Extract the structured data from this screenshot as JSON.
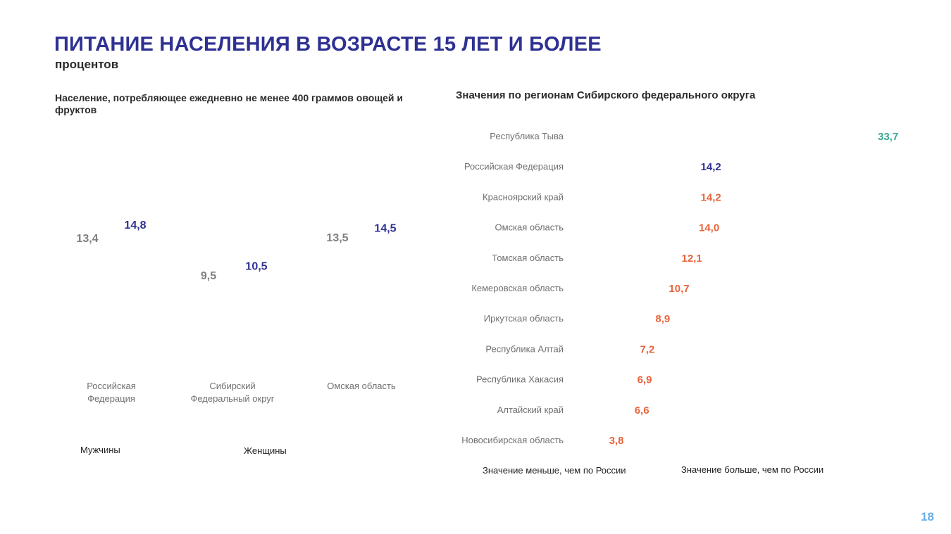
{
  "page": {
    "title": "ПИТАНИЕ НАСЕЛЕНИЯ В ВОЗРАСТЕ 15 ЛЕТ И БОЛЕЕ",
    "subtitle": "процентов",
    "page_number": "18"
  },
  "colors": {
    "men": "#808080",
    "women": "#2e3192",
    "below_russia": "#e8643c",
    "above_russia": "#3aa896",
    "russia": "#2e3192"
  },
  "chart_data": [
    {
      "type": "bar",
      "title": "Население, потребляющее ежедневно не менее 400 граммов овощей и фруктов",
      "categories": [
        [
          "Российская",
          "Федерация"
        ],
        [
          "Сибирский",
          "Федеральный округ"
        ],
        [
          "Омская область"
        ]
      ],
      "series": [
        {
          "name": "Мужчины",
          "values": [
            13.4,
            9.5,
            13.5
          ],
          "labels": [
            "13,4",
            "9,5",
            "13,5"
          ]
        },
        {
          "name": "Женщины",
          "values": [
            14.8,
            10.5,
            14.5
          ],
          "labels": [
            "14,8",
            "10,5",
            "14,5"
          ]
        }
      ],
      "legend": [
        "Мужчины",
        "Женщины"
      ],
      "legend_position": "bottom"
    },
    {
      "type": "bar",
      "orientation": "horizontal",
      "title": "Значения по регионам Сибирского федерального округа",
      "categories": [
        "Республика Тыва",
        "Российская Федерация",
        "Красноярский край",
        "Омская область",
        "Томская область",
        "Кемеровская область",
        "Иркутская область",
        "Республика Алтай",
        "Республика Хакасия",
        "Алтайский край",
        "Новосибирская область"
      ],
      "values": [
        33.7,
        14.2,
        14.2,
        14.0,
        12.1,
        10.7,
        8.9,
        7.2,
        6.9,
        6.6,
        3.8
      ],
      "labels": [
        "33,7",
        "14,2",
        "14,2",
        "14,0",
        "12,1",
        "10,7",
        "8,9",
        "7,2",
        "6,9",
        "6,6",
        "3,8"
      ],
      "groups": [
        "above",
        "russia",
        "below",
        "below",
        "below",
        "below",
        "below",
        "below",
        "below",
        "below",
        "below"
      ],
      "legend": [
        "Значение меньше, чем по России",
        "Значение больше, чем по России"
      ],
      "legend_position": "bottom"
    }
  ]
}
